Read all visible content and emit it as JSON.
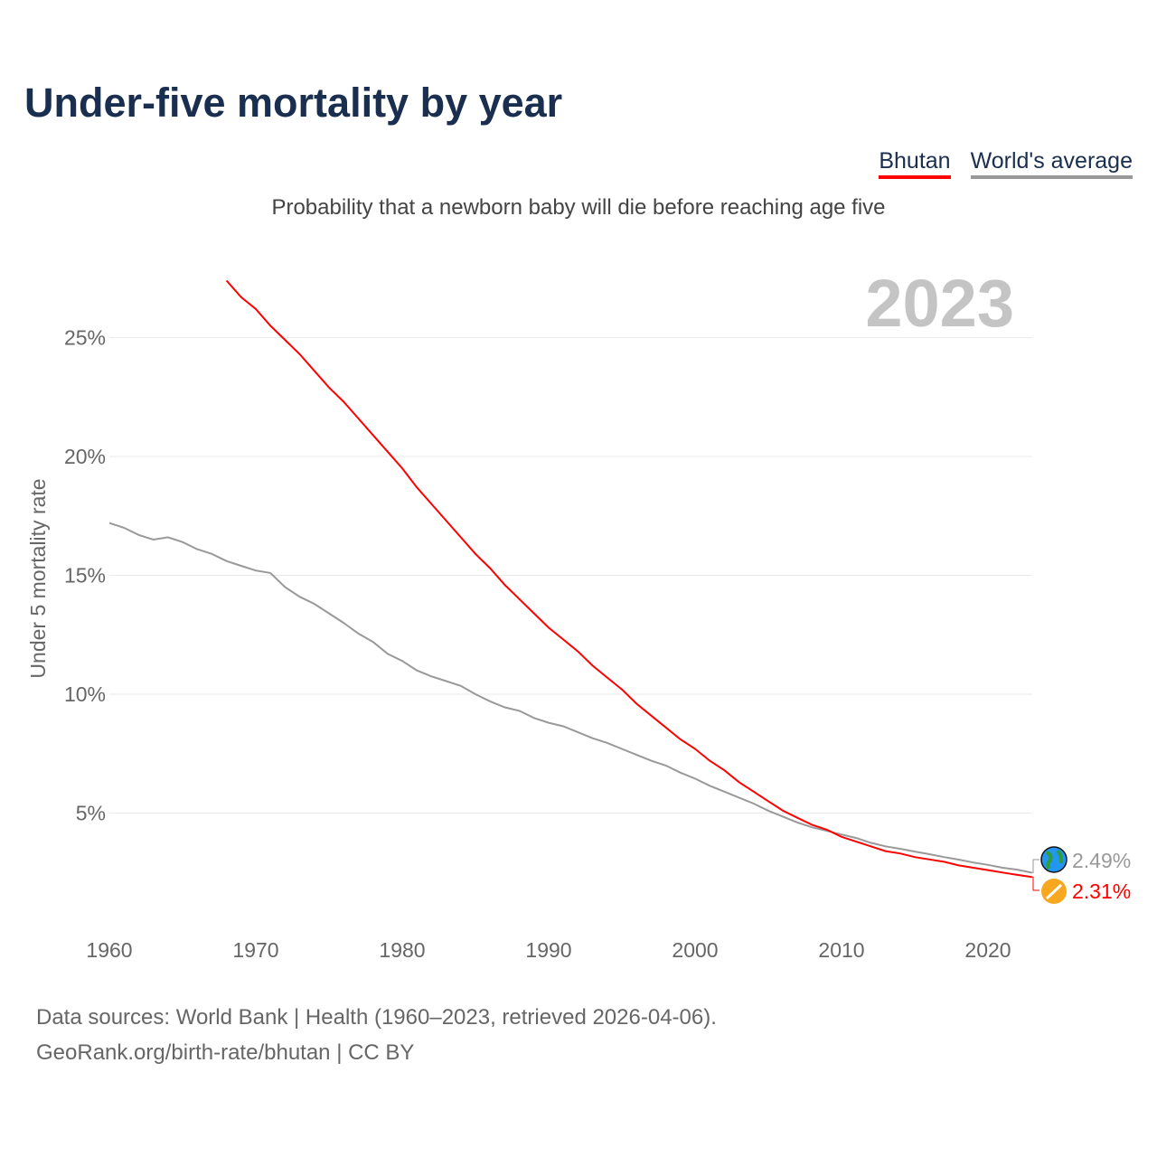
{
  "title": "Under-five mortality by year",
  "legend": [
    {
      "label": "Bhutan",
      "color": "#ff0000"
    },
    {
      "label": "World's average",
      "color": "#999999"
    }
  ],
  "subtitle": "Probability that a newborn baby will die before reaching age five",
  "year_label": "2023",
  "footer": {
    "line1": "Data sources: World Bank | Health (1960–2023, retrieved 2026-04-06).",
    "line2": "GeoRank.org/birth-rate/bhutan | CC BY"
  },
  "chart_data": {
    "type": "line",
    "ylabel": "Under 5 mortality rate",
    "xlim": [
      1960,
      2023
    ],
    "ylim": [
      0,
      27.5
    ],
    "x_ticks": [
      1960,
      1970,
      1980,
      1990,
      2000,
      2010,
      2020
    ],
    "y_ticks": [
      {
        "v": 5,
        "label": "5%"
      },
      {
        "v": 10,
        "label": "10%"
      },
      {
        "v": 15,
        "label": "15%"
      },
      {
        "v": 20,
        "label": "20%"
      },
      {
        "v": 25,
        "label": "25%"
      }
    ],
    "grid": true,
    "series": [
      {
        "name": "World's average",
        "color": "#999999",
        "icon": "globe-icon",
        "end_label": "2.49%",
        "start": 1960,
        "values": [
          17.2,
          17.0,
          16.7,
          16.5,
          16.6,
          16.4,
          16.1,
          15.9,
          15.6,
          15.4,
          15.2,
          15.1,
          14.5,
          14.1,
          13.8,
          13.4,
          13.0,
          12.55,
          12.2,
          11.7,
          11.4,
          11.0,
          10.75,
          10.55,
          10.35,
          10.0,
          9.7,
          9.45,
          9.3,
          9.0,
          8.8,
          8.65,
          8.4,
          8.15,
          7.95,
          7.7,
          7.45,
          7.2,
          7.0,
          6.7,
          6.45,
          6.15,
          5.9,
          5.65,
          5.4,
          5.1,
          4.85,
          4.6,
          4.4,
          4.25,
          4.1,
          3.95,
          3.75,
          3.6,
          3.5,
          3.38,
          3.27,
          3.15,
          3.04,
          2.92,
          2.82,
          2.7,
          2.62,
          2.49
        ]
      },
      {
        "name": "Bhutan",
        "color": "#ff0000",
        "icon": "bhutan-flag-icon",
        "end_label": "2.31%",
        "start": 1968,
        "values": [
          27.4,
          26.7,
          26.2,
          25.5,
          24.9,
          24.3,
          23.6,
          22.9,
          22.3,
          21.6,
          20.9,
          20.2,
          19.5,
          18.7,
          18.0,
          17.3,
          16.6,
          15.9,
          15.3,
          14.6,
          14.0,
          13.4,
          12.8,
          12.3,
          11.8,
          11.2,
          10.7,
          10.2,
          9.6,
          9.1,
          8.6,
          8.1,
          7.7,
          7.2,
          6.8,
          6.3,
          5.9,
          5.5,
          5.1,
          4.8,
          4.5,
          4.3,
          4.0,
          3.8,
          3.6,
          3.4,
          3.3,
          3.15,
          3.05,
          2.95,
          2.8,
          2.7,
          2.6,
          2.5,
          2.4,
          2.31
        ]
      }
    ]
  }
}
